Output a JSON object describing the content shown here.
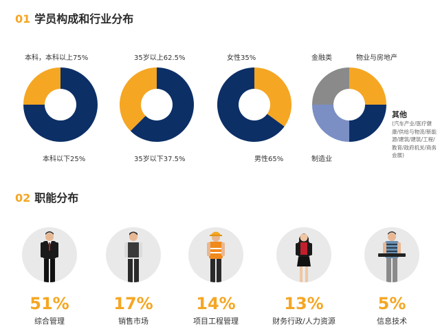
{
  "sections": {
    "s1": {
      "num": "01",
      "title": "学员构成和行业分布"
    },
    "s2": {
      "num": "02",
      "title": "职能分布"
    }
  },
  "colors": {
    "navy": "#0c2f66",
    "orange": "#f5a623",
    "gray": "#8a8a8a",
    "light_blue": "#7b8fc4"
  },
  "chart_data": [
    {
      "type": "pie",
      "donut": true,
      "labels": [
        "本科，本科以上75%",
        "本科以下25%"
      ],
      "values": [
        75,
        25
      ],
      "colors": [
        "#0c2f66",
        "#f5a623"
      ]
    },
    {
      "type": "pie",
      "donut": true,
      "labels": [
        "35岁以上62.5%",
        "35岁以下37.5%"
      ],
      "values": [
        62.5,
        37.5
      ],
      "colors": [
        "#0c2f66",
        "#f5a623"
      ]
    },
    {
      "type": "pie",
      "donut": true,
      "labels": [
        "女性35%",
        "男性65%"
      ],
      "values": [
        35,
        65
      ],
      "colors": [
        "#f5a623",
        "#0c2f66"
      ]
    },
    {
      "type": "pie",
      "donut": true,
      "labels": [
        "物业与房地产",
        "其他",
        "制造业",
        "金融类"
      ],
      "values": [
        25,
        25,
        25,
        25
      ],
      "colors": [
        "#f5a623",
        "#0c2f66",
        "#7b8fc4",
        "#8a8a8a"
      ]
    }
  ],
  "industry_other_note": "(汽车产业/医疗健康/供给与物流/新能源/建筑/建筑/工程/教育/政府机关/商务会展)",
  "functions": [
    {
      "pct": "51%",
      "label": "综合管理",
      "icon": "businessman-icon"
    },
    {
      "pct": "17%",
      "label": "销售市场",
      "icon": "salesman-icon"
    },
    {
      "pct": "14%",
      "label": "项目工程管理",
      "icon": "engineer-icon"
    },
    {
      "pct": "13%",
      "label": "财务行政/人力资源",
      "icon": "office-woman-icon"
    },
    {
      "pct": "5%",
      "label": "信息技术",
      "icon": "it-worker-icon"
    }
  ]
}
